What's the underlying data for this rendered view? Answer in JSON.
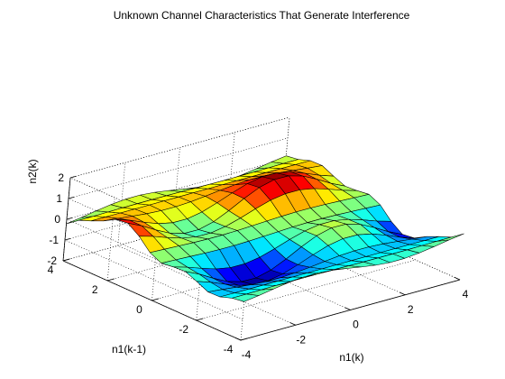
{
  "chart_data": {
    "type": "surface",
    "title": "Unknown Channel Characteristics That Generate Interference",
    "xlabel": "n1(k)",
    "ylabel": "n1(k-1)",
    "zlabel": "n2(k)",
    "xlim": [
      -4,
      4
    ],
    "ylim": [
      -4,
      4
    ],
    "zlim": [
      -2,
      2
    ],
    "xticks": [
      "-4",
      "-2",
      "0",
      "2",
      "4"
    ],
    "yticks": [
      "-4",
      "-2",
      "0",
      "2",
      "4"
    ],
    "zticks": [
      "-2",
      "-1",
      "0",
      "1",
      "2"
    ],
    "grid": true,
    "box": "three back faces",
    "colormap": "jet",
    "mesh_x": [
      -4,
      -3.4667,
      -2.9333,
      -2.4,
      -1.8667,
      -1.3333,
      -0.8,
      -0.2667,
      0.2667,
      0.8,
      1.3333,
      1.8667,
      2.4,
      2.9333,
      3.4667,
      4
    ],
    "mesh_y": [
      -4,
      -3.4667,
      -2.9333,
      -2.4,
      -1.8667,
      -1.3333,
      -0.8,
      -0.2667,
      0.2667,
      0.8,
      1.3333,
      1.8667,
      2.4,
      2.9333,
      3.4667,
      4
    ],
    "surface_function": "z = sin(x) * sin(y)^2 * cos(0.5*y) + 0.6*sin(0.8*y)"
  }
}
